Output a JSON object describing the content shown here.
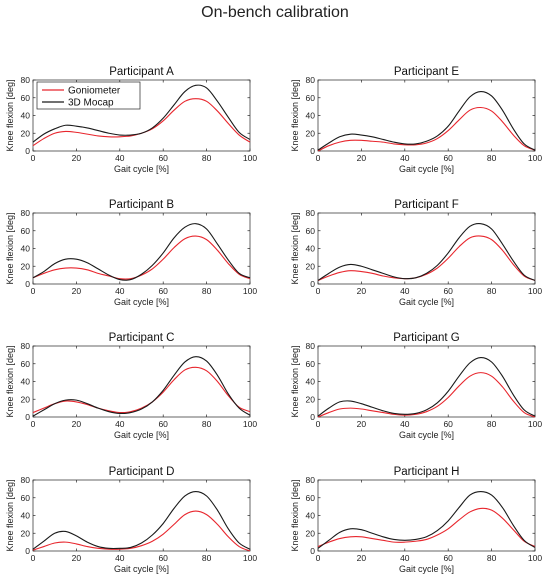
{
  "figure_title": "On-bench calibration",
  "colors": {
    "goniometer": "#e8262d",
    "mocap": "#1a1a1a",
    "axis": "#262626"
  },
  "chart_data": [
    {
      "type": "line",
      "title": "Participant A",
      "xlabel": "Gait cycle [%]",
      "ylabel": "Knee flexion [deg]",
      "xlim": [
        0,
        100
      ],
      "ylim": [
        0,
        80
      ],
      "xticks": [
        0,
        20,
        40,
        60,
        80,
        100
      ],
      "yticks": [
        0,
        20,
        40,
        60,
        80
      ],
      "legend": "top-left",
      "x": [
        0,
        5,
        10,
        15,
        20,
        25,
        30,
        35,
        40,
        45,
        50,
        55,
        60,
        65,
        70,
        75,
        80,
        85,
        90,
        95,
        100
      ],
      "series": [
        {
          "name": "Goniometer",
          "color": "#e8262d",
          "values": [
            6,
            14,
            20,
            22,
            21,
            19,
            17,
            16,
            16,
            17,
            20,
            25,
            34,
            46,
            56,
            59,
            56,
            45,
            31,
            18,
            10
          ]
        },
        {
          "name": "3D Mocap",
          "color": "#1a1a1a",
          "values": [
            10,
            19,
            25,
            29,
            28,
            26,
            23,
            20,
            18,
            18,
            20,
            26,
            37,
            52,
            67,
            74,
            71,
            56,
            38,
            21,
            13
          ]
        }
      ]
    },
    {
      "type": "line",
      "title": "Participant E",
      "xlabel": "Gait cycle [%]",
      "ylabel": "Knee flexion [deg]",
      "xlim": [
        0,
        100
      ],
      "ylim": [
        0,
        80
      ],
      "xticks": [
        0,
        20,
        40,
        60,
        80,
        100
      ],
      "yticks": [
        0,
        20,
        40,
        60,
        80
      ],
      "x": [
        0,
        5,
        10,
        15,
        20,
        25,
        30,
        35,
        40,
        45,
        50,
        55,
        60,
        65,
        70,
        75,
        80,
        85,
        90,
        95,
        100
      ],
      "series": [
        {
          "name": "Goniometer",
          "color": "#e8262d",
          "values": [
            0,
            6,
            10,
            12,
            12,
            11,
            10,
            8,
            7,
            7,
            9,
            14,
            23,
            35,
            46,
            49,
            45,
            33,
            18,
            6,
            1
          ]
        },
        {
          "name": "3D Mocap",
          "color": "#1a1a1a",
          "values": [
            1,
            9,
            16,
            19,
            18,
            16,
            13,
            10,
            8,
            8,
            11,
            17,
            28,
            45,
            61,
            67,
            62,
            46,
            25,
            8,
            1
          ]
        }
      ]
    },
    {
      "type": "line",
      "title": "Participant B",
      "xlabel": "Gait cycle [%]",
      "ylabel": "Knee flexion [deg]",
      "xlim": [
        0,
        100
      ],
      "ylim": [
        0,
        80
      ],
      "xticks": [
        0,
        20,
        40,
        60,
        80,
        100
      ],
      "yticks": [
        0,
        20,
        40,
        60,
        80
      ],
      "x": [
        0,
        5,
        10,
        15,
        20,
        25,
        30,
        35,
        40,
        45,
        50,
        55,
        60,
        65,
        70,
        75,
        80,
        85,
        90,
        95,
        100
      ],
      "series": [
        {
          "name": "Goniometer",
          "color": "#e8262d",
          "values": [
            7,
            12,
            16,
            18,
            18,
            16,
            12,
            9,
            6,
            6,
            10,
            17,
            28,
            41,
            51,
            54,
            50,
            38,
            23,
            11,
            6
          ]
        },
        {
          "name": "3D Mocap",
          "color": "#1a1a1a",
          "values": [
            7,
            14,
            23,
            28,
            28,
            24,
            17,
            10,
            5,
            5,
            11,
            21,
            35,
            52,
            64,
            68,
            62,
            45,
            27,
            12,
            7
          ]
        }
      ]
    },
    {
      "type": "line",
      "title": "Participant F",
      "xlabel": "Gait cycle [%]",
      "ylabel": "Knee flexion [deg]",
      "xlim": [
        0,
        100
      ],
      "ylim": [
        0,
        80
      ],
      "xticks": [
        0,
        20,
        40,
        60,
        80,
        100
      ],
      "yticks": [
        0,
        20,
        40,
        60,
        80
      ],
      "x": [
        0,
        5,
        10,
        15,
        20,
        25,
        30,
        35,
        40,
        45,
        50,
        55,
        60,
        65,
        70,
        75,
        80,
        85,
        90,
        95,
        100
      ],
      "series": [
        {
          "name": "Goniometer",
          "color": "#e8262d",
          "values": [
            4,
            9,
            13,
            15,
            14,
            12,
            9,
            7,
            6,
            7,
            11,
            18,
            29,
            42,
            52,
            54,
            50,
            38,
            22,
            9,
            4
          ]
        },
        {
          "name": "3D Mocap",
          "color": "#1a1a1a",
          "values": [
            4,
            12,
            19,
            22,
            20,
            16,
            12,
            8,
            6,
            7,
            12,
            21,
            35,
            52,
            65,
            68,
            62,
            45,
            26,
            10,
            4
          ]
        }
      ]
    },
    {
      "type": "line",
      "title": "Participant C",
      "xlabel": "Gait cycle [%]",
      "ylabel": "Knee flexion [deg]",
      "xlim": [
        0,
        100
      ],
      "ylim": [
        0,
        80
      ],
      "xticks": [
        0,
        20,
        40,
        60,
        80,
        100
      ],
      "yticks": [
        0,
        20,
        40,
        60,
        80
      ],
      "x": [
        0,
        5,
        10,
        15,
        20,
        25,
        30,
        35,
        40,
        45,
        50,
        55,
        60,
        65,
        70,
        75,
        80,
        85,
        90,
        95,
        100
      ],
      "series": [
        {
          "name": "Goniometer",
          "color": "#e8262d",
          "values": [
            5,
            10,
            15,
            18,
            17,
            14,
            10,
            7,
            5,
            6,
            10,
            17,
            28,
            42,
            53,
            56,
            52,
            40,
            24,
            11,
            6
          ]
        },
        {
          "name": "3D Mocap",
          "color": "#1a1a1a",
          "values": [
            1,
            8,
            15,
            19,
            19,
            15,
            10,
            6,
            4,
            5,
            9,
            17,
            30,
            47,
            62,
            68,
            63,
            47,
            26,
            10,
            2
          ]
        }
      ]
    },
    {
      "type": "line",
      "title": "Participant G",
      "xlabel": "Gait cycle [%]",
      "ylabel": "Knee flexion [deg]",
      "xlim": [
        0,
        100
      ],
      "ylim": [
        0,
        80
      ],
      "xticks": [
        0,
        20,
        40,
        60,
        80,
        100
      ],
      "yticks": [
        0,
        20,
        40,
        60,
        80
      ],
      "x": [
        0,
        5,
        10,
        15,
        20,
        25,
        30,
        35,
        40,
        45,
        50,
        55,
        60,
        65,
        70,
        75,
        80,
        85,
        90,
        95,
        100
      ],
      "series": [
        {
          "name": "Goniometer",
          "color": "#e8262d",
          "values": [
            0,
            5,
            9,
            10,
            9,
            7,
            5,
            3,
            2,
            3,
            6,
            12,
            22,
            35,
            46,
            50,
            46,
            34,
            18,
            5,
            0
          ]
        },
        {
          "name": "3D Mocap",
          "color": "#1a1a1a",
          "values": [
            1,
            10,
            17,
            18,
            15,
            11,
            7,
            4,
            3,
            4,
            8,
            16,
            29,
            46,
            61,
            67,
            62,
            46,
            25,
            8,
            1
          ]
        }
      ]
    },
    {
      "type": "line",
      "title": "Participant D",
      "xlabel": "Gait cycle [%]",
      "ylabel": "Knee flexion [deg]",
      "xlim": [
        0,
        100
      ],
      "ylim": [
        0,
        80
      ],
      "xticks": [
        0,
        20,
        40,
        60,
        80,
        100
      ],
      "yticks": [
        0,
        20,
        40,
        60,
        80
      ],
      "x": [
        0,
        5,
        10,
        15,
        20,
        25,
        30,
        35,
        40,
        45,
        50,
        55,
        60,
        65,
        70,
        75,
        80,
        85,
        90,
        95,
        100
      ],
      "series": [
        {
          "name": "Goniometer",
          "color": "#e8262d",
          "values": [
            1,
            5,
            9,
            10,
            8,
            5,
            3,
            2,
            2,
            3,
            6,
            11,
            19,
            30,
            41,
            45,
            41,
            30,
            16,
            5,
            0
          ]
        },
        {
          "name": "3D Mocap",
          "color": "#1a1a1a",
          "values": [
            2,
            11,
            20,
            22,
            17,
            10,
            5,
            3,
            3,
            4,
            9,
            18,
            31,
            48,
            62,
            67,
            62,
            46,
            25,
            9,
            2
          ]
        }
      ]
    },
    {
      "type": "line",
      "title": "Participant H",
      "xlabel": "Gait cycle [%]",
      "ylabel": "Knee flexion [deg]",
      "xlim": [
        0,
        100
      ],
      "ylim": [
        0,
        80
      ],
      "xticks": [
        0,
        20,
        40,
        60,
        80,
        100
      ],
      "yticks": [
        0,
        20,
        40,
        60,
        80
      ],
      "x": [
        0,
        5,
        10,
        15,
        20,
        25,
        30,
        35,
        40,
        45,
        50,
        55,
        60,
        65,
        70,
        75,
        80,
        85,
        90,
        95,
        100
      ],
      "series": [
        {
          "name": "Goniometer",
          "color": "#e8262d",
          "values": [
            5,
            10,
            14,
            16,
            16,
            14,
            12,
            10,
            10,
            11,
            13,
            18,
            25,
            35,
            44,
            48,
            46,
            37,
            24,
            11,
            5
          ]
        },
        {
          "name": "3D Mocap",
          "color": "#1a1a1a",
          "values": [
            3,
            12,
            21,
            25,
            24,
            20,
            16,
            13,
            12,
            13,
            16,
            23,
            34,
            49,
            63,
            67,
            63,
            49,
            29,
            12,
            4
          ]
        }
      ]
    }
  ]
}
